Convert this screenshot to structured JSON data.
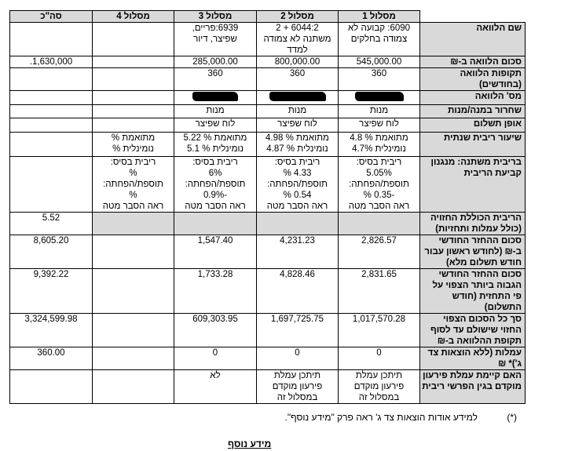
{
  "columns": [
    "סה\"כ",
    "מסלול 4",
    "מסלול 3",
    "מסלול 2",
    "מסלול 1"
  ],
  "rows": [
    {
      "label": "שם הלוואה",
      "cells": [
        [],
        [],
        [
          "6939:פריים,",
          "שפיצר, דיור"
        ],
        [
          "6044:2 + 2",
          "משתנה לא צמודה",
          "למדד"
        ],
        [
          "6090: קבועה לא",
          "צמודה בחלקים"
        ]
      ]
    },
    {
      "label": "סכום הלוואה ב-₪",
      "cells": [
        [
          "1,630,000."
        ],
        [],
        [
          "285,000.00"
        ],
        [
          "800,000.00"
        ],
        [
          "545,000.00"
        ]
      ]
    },
    {
      "label": "תקופות הלוואה (בחודשים)",
      "cells": [
        [],
        [],
        [
          "360"
        ],
        [
          "360"
        ],
        [
          "360"
        ]
      ]
    },
    {
      "label": "מס' הלוואה",
      "cells": [
        [],
        [],
        [],
        [],
        []
      ]
    },
    {
      "label": "שחרור במנה/מנות",
      "cells": [
        [],
        [],
        [
          "מנות"
        ],
        [
          "מנות"
        ],
        [
          "מנות"
        ]
      ]
    },
    {
      "label": "אופן תשלום",
      "cells": [
        [],
        [],
        [
          "לוח שפיצר"
        ],
        [
          "לוח שפיצר"
        ],
        [
          "לוח שפיצר"
        ]
      ]
    },
    {
      "label": "שיעור ריבית שנתית",
      "cells": [
        [],
        [
          "מתואמת %",
          "נומינלית %"
        ],
        [
          "מתואמת % 5.22",
          "נומינלית % 5.1"
        ],
        [
          "מתואמת % 4.98",
          "נומינלית % 4.87"
        ],
        [
          "מתואמת % 4.8",
          "נומינלית 4.7%"
        ]
      ]
    },
    {
      "label": "בריבית משתנה: מנגנון קביעת הריבית",
      "cells": [
        [],
        [
          "ריבית בסיס:",
          "%",
          "תוספת/הפחתה:",
          "%",
          "ראה הסבר מטה"
        ],
        [
          "ריבית בסיס:",
          "6%",
          "תוספת/הפחתה:",
          "-0.9%",
          "ראה הסבר מטה"
        ],
        [
          "ריבית בסיס:",
          "4.33 %",
          "תוספת/הפחתה:",
          "0.54 %",
          "ראה הסבר מטה"
        ],
        [
          "ריבית בסיס:",
          "5.05%",
          "תוספת/הפחתה:",
          "-0.35 %",
          "ראה הסבר מטה"
        ]
      ]
    },
    {
      "label": "הריבית הכוללת החזויה (כולל עמלות ותחזיות)",
      "cells": [
        [
          "5.52"
        ],
        [],
        [],
        [],
        []
      ]
    },
    {
      "label": "סכום ההחזר החודשי ב-₪ (לחודש ראשון עבור חודש תשלום מלא)",
      "cells": [
        [
          "8,605.20"
        ],
        [],
        [
          "1,547.40"
        ],
        [
          "4,231.23"
        ],
        [
          "2,826.57"
        ]
      ]
    },
    {
      "label": "סכום ההחזר החודשי הגבוה ביותר הצפוי על פי התחזית (חודש התשלום)",
      "cells": [
        [
          "9,392.22"
        ],
        [],
        [
          "1,733.28"
        ],
        [
          "4,828.46"
        ],
        [
          "2,831.65"
        ]
      ]
    },
    {
      "label": "סך כל הסכום הצפוי החזוי שישולם עד לסוף תקופת ההלוואה ב-₪",
      "cells": [
        [
          "3,324,599.98"
        ],
        [],
        [
          "609,303.95"
        ],
        [
          "1,697,725.75"
        ],
        [
          "1,017,570.28"
        ]
      ]
    },
    {
      "label": "עמלות (ללא הוצאות צד ג')* ₪",
      "cells": [
        [
          "360.00"
        ],
        [],
        [
          "0"
        ],
        [
          "0"
        ],
        [
          "0"
        ]
      ]
    },
    {
      "label": "האם קיימת עמלת פירעון מוקדם בגין הפרשי ריבית",
      "cells": [
        [],
        [],
        [
          "לא"
        ],
        [
          "תיתכן עמלת",
          "פירעון מוקדם",
          "במסלול זה"
        ],
        [
          "תיתכן עמלת",
          "פירעון מוקדם",
          "במסלול זה"
        ]
      ]
    }
  ],
  "footnote": {
    "mark": "(*)",
    "text": "למידע אודות הוצאות צד ג' ראה פרק \"מידע נוסף\"."
  },
  "section_title": "מידע נוסף",
  "colors": {
    "label_bg": "#d9d9d9"
  }
}
